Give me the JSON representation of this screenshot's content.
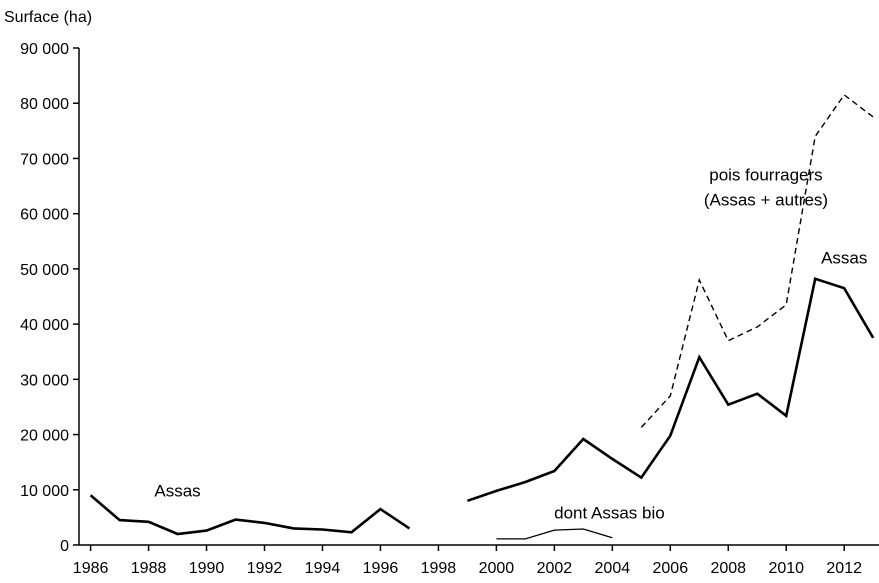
{
  "chart_data": {
    "type": "line",
    "ylabel": "Surface (ha)",
    "xlabel": "",
    "title": "",
    "xlim": [
      1985.6,
      2013.2
    ],
    "ylim": [
      0,
      90000
    ],
    "grid": false,
    "x_ticks": [
      1986,
      1988,
      1990,
      1992,
      1994,
      1996,
      1998,
      2000,
      2002,
      2004,
      2006,
      2008,
      2010,
      2012
    ],
    "x_tick_labels": [
      "1986",
      "1988",
      "1990",
      "1992",
      "1994",
      "1996",
      "1998",
      "2000",
      "2002",
      "2004",
      "2006",
      "2008",
      "2010",
      "2012"
    ],
    "y_ticks": [
      0,
      10000,
      20000,
      30000,
      40000,
      50000,
      60000,
      70000,
      80000,
      90000
    ],
    "y_tick_labels": [
      "0",
      "10 000",
      "20 000",
      "30 000",
      "40 000",
      "50 000",
      "60 000",
      "70 000",
      "80 000",
      "90 000"
    ],
    "series": [
      {
        "name": "Assas",
        "style": "solid-thick",
        "color": "#000000",
        "segments": [
          {
            "x": [
              1986,
              1987,
              1988,
              1989,
              1990,
              1991,
              1992,
              1993,
              1994,
              1995,
              1996,
              1997
            ],
            "y": [
              9000,
              4500,
              4200,
              2000,
              2600,
              4600,
              4000,
              3000,
              2800,
              2300,
              6500,
              3000
            ]
          },
          {
            "x": [
              1999,
              2000,
              2001,
              2002,
              2003,
              2004,
              2005,
              2006,
              2007,
              2008,
              2009,
              2010,
              2011,
              2012,
              2013
            ],
            "y": [
              8000,
              9800,
              11400,
              13400,
              19200,
              15600,
              12200,
              19800,
              34000,
              25400,
              27400,
              23400,
              48200,
              46500,
              37500
            ]
          }
        ]
      },
      {
        "name": "pois fourragers (Assas + autres)",
        "style": "dashed",
        "color": "#000000",
        "segments": [
          {
            "x": [
              2005,
              2006,
              2007,
              2008,
              2009,
              2010,
              2011,
              2012,
              2013
            ],
            "y": [
              21300,
              27000,
              48000,
              37000,
              39500,
              43500,
              74000,
              81500,
              77500
            ]
          }
        ]
      },
      {
        "name": "dont Assas bio",
        "style": "solid-thin",
        "color": "#000000",
        "segments": [
          {
            "x": [
              2000,
              2001,
              2002,
              2003,
              2004
            ],
            "y": [
              1100,
              1100,
              2700,
              2900,
              1300
            ]
          }
        ]
      }
    ],
    "annotations": [
      {
        "text": "Assas",
        "at_x": 1989.0,
        "at_y": 8800
      },
      {
        "text": "pois fourragers",
        "at_x": 2009.3,
        "at_y": 66000
      },
      {
        "text": "(Assas + autres)",
        "at_x": 2009.3,
        "at_y": 61500
      },
      {
        "text": "Assas",
        "at_x": 2012.0,
        "at_y": 51000
      },
      {
        "text": "dont Assas bio",
        "at_x": 2003.9,
        "at_y": 4800
      }
    ]
  }
}
